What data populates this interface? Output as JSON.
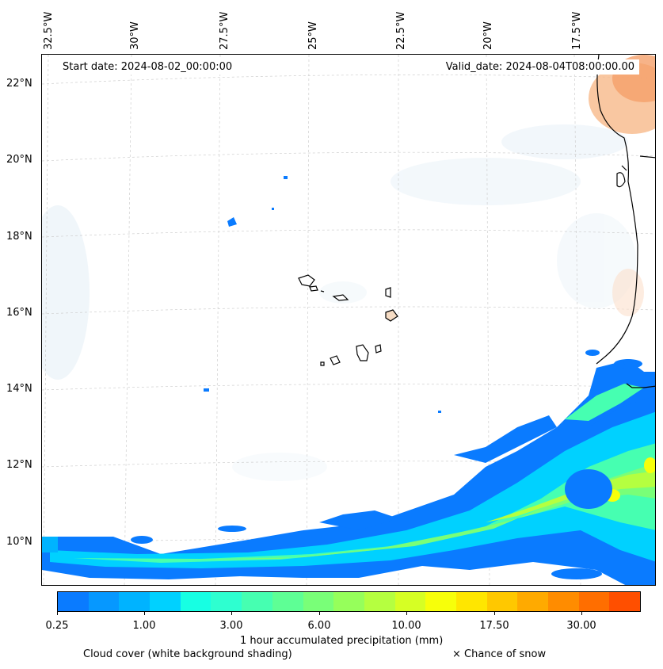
{
  "map": {
    "lon_labels": [
      "32.5°W",
      "30°W",
      "27.5°W",
      "25°W",
      "22.5°W",
      "20°W",
      "17.5°W"
    ],
    "lat_labels": [
      "22°N",
      "20°N",
      "18°N",
      "16°N",
      "14°N",
      "12°N",
      "10°N"
    ],
    "start_date": "Start date: 2024-08-02_00:00:00",
    "valid_date": "Valid_date: 2024-08-04T08:00:00.00"
  },
  "colorbar": {
    "colors": [
      "#0a7bff",
      "#0698ff",
      "#00b3ff",
      "#00d1ff",
      "#17ffe3",
      "#2effd0",
      "#46ffb1",
      "#5eff95",
      "#79ff78",
      "#96ff5b",
      "#b5ff40",
      "#d6ff24",
      "#f7ff0a",
      "#ffe600",
      "#ffc800",
      "#ffaa00",
      "#ff8c00",
      "#ff6e00",
      "#ff4f00"
    ],
    "tick_labels": [
      "0.25",
      "1.00",
      "3.00",
      "6.00",
      "10.00",
      "17.50",
      "30.00"
    ],
    "label": "1 hour accumulated precipitation (mm)"
  },
  "legend": {
    "cloud_cover": "Cloud cover (white background shading)",
    "snow": "× Chance of snow"
  }
}
